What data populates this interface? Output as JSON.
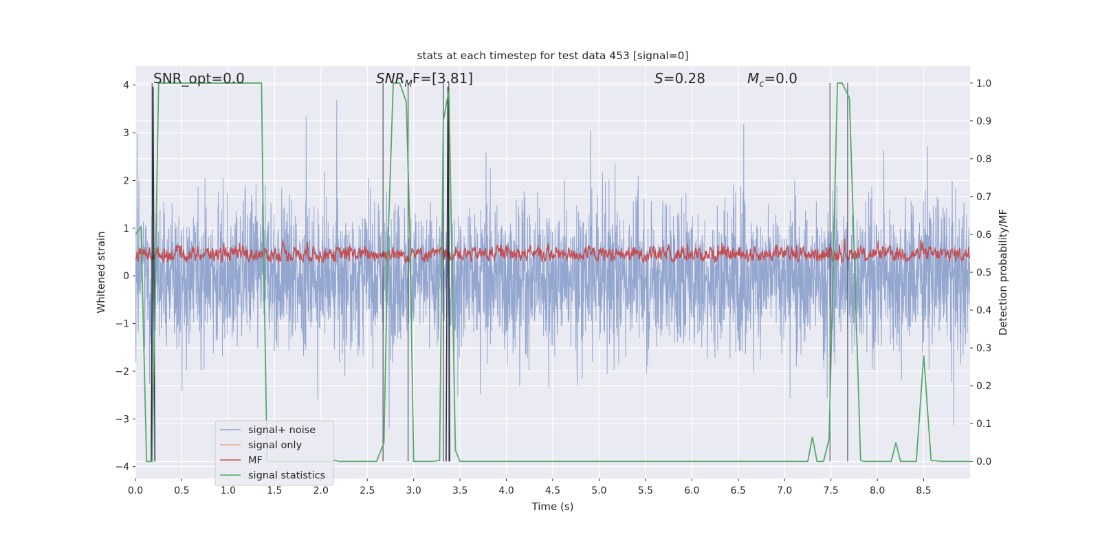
{
  "chart_data": {
    "type": "line",
    "title": "stats at each timestep for test data 453 [signal=0]",
    "xlabel": "Time (s)",
    "ylabel_left": "Whitened strain",
    "ylabel_right": "Detection probability/MF",
    "xlim": [
      0.0,
      9.0
    ],
    "ylim_left": [
      -4.25,
      4.4
    ],
    "ylim_right": [
      -0.045,
      1.045
    ],
    "x_ticks": [
      0.0,
      0.5,
      1.0,
      1.5,
      2.0,
      2.5,
      3.0,
      3.5,
      4.0,
      4.5,
      5.0,
      5.5,
      6.0,
      6.5,
      7.0,
      7.5,
      8.0,
      8.5
    ],
    "x_tick_labels": [
      "0.0",
      "0.5",
      "1.0",
      "1.5",
      "2.0",
      "2.5",
      "3.0",
      "3.5",
      "4.0",
      "4.5",
      "5.0",
      "5.5",
      "6.0",
      "6.5",
      "7.0",
      "7.5",
      "8.0",
      "8.5"
    ],
    "y_left_ticks": [
      4,
      3,
      2,
      1,
      0,
      -1,
      -2,
      -3,
      -4
    ],
    "y_left_tick_labels": [
      "4",
      "3",
      "2",
      "1",
      "0",
      "−1",
      "−2",
      "−3",
      "−4"
    ],
    "y_right_ticks": [
      1.0,
      0.9,
      0.8,
      0.7,
      0.6,
      0.5,
      0.4,
      0.3,
      0.2,
      0.1,
      0.0
    ],
    "y_right_tick_labels": [
      "1.0",
      "0.9",
      "0.8",
      "0.7",
      "0.6",
      "0.5",
      "0.4",
      "0.3",
      "0.2",
      "0.1",
      "0.0"
    ],
    "grid": true,
    "legend_placement": "lower-left",
    "annotations": {
      "snr_opt": "SNR_opt=0.0",
      "snr_mf_pre": "SNR",
      "snr_mf_sub": "M",
      "snr_mf_post": "F=[3.81]",
      "s_pre": "S",
      "s_post": "=0.28",
      "mc_pre": "M",
      "mc_sub": "c",
      "mc_post": "=0.0"
    },
    "series": [
      {
        "name": "signal+ noise",
        "color": "#8ea2cc",
        "axis": "left",
        "note": "dense noise, roughly within -3.5 to 3.8"
      },
      {
        "name": "signal only",
        "color": "#e8a68a",
        "axis": "left",
        "values": []
      },
      {
        "name": "MF",
        "color": "#c44e52",
        "axis": "right",
        "range": [
          0.5,
          0.62
        ]
      },
      {
        "name": "signal statistics",
        "color": "#55a868",
        "axis": "right",
        "x": [
          0.0,
          0.06,
          0.12,
          0.18,
          0.25,
          0.3,
          1.0,
          1.36,
          1.38,
          1.42,
          1.9,
          2.1,
          2.15,
          2.2,
          2.6,
          2.68,
          2.72,
          2.78,
          2.85,
          2.92,
          2.96,
          3.0,
          3.2,
          3.28,
          3.32,
          3.38,
          3.45,
          3.5,
          4.0,
          7.0,
          7.25,
          7.3,
          7.35,
          7.42,
          7.48,
          7.57,
          7.62,
          7.7,
          7.82,
          7.86,
          8.1,
          8.15,
          8.2,
          8.25,
          8.42,
          8.5,
          8.58,
          8.7,
          9.0
        ],
        "values": [
          0.6,
          0.62,
          0.0,
          0.0,
          1.0,
          1.0,
          1.0,
          1.0,
          0.6,
          0.0,
          0.0,
          0.0,
          0.003,
          0.0,
          0.0,
          0.05,
          0.55,
          1.0,
          1.0,
          0.95,
          0.6,
          0.0,
          0.0,
          0.003,
          0.9,
          0.98,
          0.03,
          0.0,
          0.0,
          0.0,
          0.0,
          0.065,
          0.0,
          0.0,
          0.06,
          1.0,
          1.0,
          0.96,
          0.003,
          0.0,
          0.0,
          0.0,
          0.05,
          0.0,
          0.0,
          0.28,
          0.003,
          0.0,
          0.0
        ]
      }
    ],
    "vertical_lines_x": [
      0.18,
      2.67,
      2.94,
      3.32,
      3.38,
      7.49,
      7.68
    ],
    "mf_peak_x": [
      0.19,
      3.37
    ]
  }
}
